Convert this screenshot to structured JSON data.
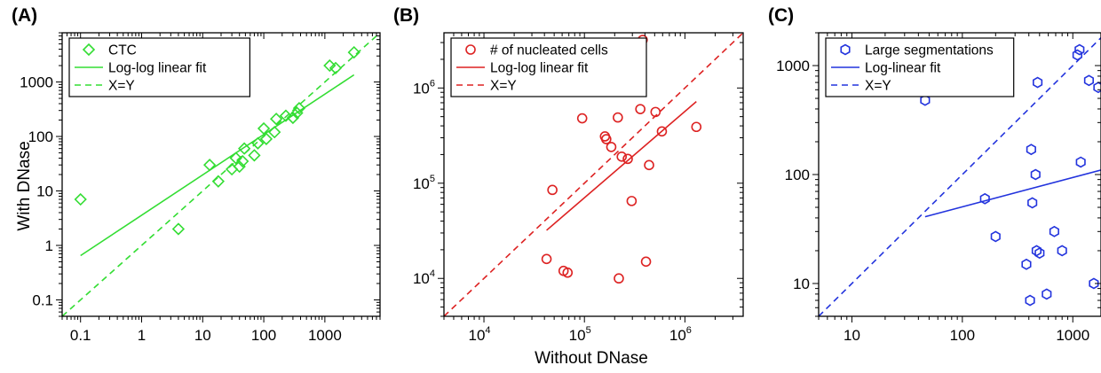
{
  "figure": {
    "ylabel_shared": "With DNase",
    "xlabel_shared": "Without DNase"
  },
  "chart_data": [
    {
      "panel_label": "(A)",
      "type": "scatter",
      "xscale": "log",
      "yscale": "log",
      "xlim": [
        0.05,
        8000
      ],
      "ylim": [
        0.05,
        8000
      ],
      "xticks": [
        0.1,
        1,
        10,
        100,
        1000
      ],
      "xticklabels": [
        "0.1",
        "1",
        "10",
        "100",
        "1000"
      ],
      "yticks": [
        0.1,
        1,
        10,
        100,
        1000
      ],
      "yticklabels": [
        "0.1",
        "1",
        "10",
        "100",
        "1000"
      ],
      "ticklabel_style": "plain",
      "color": "#33dd33",
      "marker": "diamond",
      "legend_position": "top-left",
      "series": [
        {
          "name": "CTC",
          "kind": "points",
          "points": [
            [
              0.1,
              7
            ],
            [
              4,
              2
            ],
            [
              13,
              30
            ],
            [
              18,
              15
            ],
            [
              30,
              25
            ],
            [
              35,
              40
            ],
            [
              40,
              28
            ],
            [
              45,
              35
            ],
            [
              48,
              60
            ],
            [
              70,
              45
            ],
            [
              80,
              75
            ],
            [
              100,
              140
            ],
            [
              110,
              90
            ],
            [
              150,
              120
            ],
            [
              160,
              210
            ],
            [
              230,
              240
            ],
            [
              300,
              220
            ],
            [
              350,
              270
            ],
            [
              380,
              330
            ],
            [
              1200,
              2000
            ],
            [
              1500,
              1800
            ],
            [
              3000,
              3500
            ]
          ]
        },
        {
          "name": "Log-log linear fit",
          "kind": "line",
          "dash": false,
          "points": [
            [
              0.1,
              0.65
            ],
            [
              3000,
              1350
            ]
          ]
        },
        {
          "name": "X=Y",
          "kind": "line",
          "dash": true,
          "points": [
            [
              0.05,
              0.05
            ],
            [
              8000,
              8000
            ]
          ]
        }
      ]
    },
    {
      "panel_label": "(B)",
      "type": "scatter",
      "xscale": "log",
      "yscale": "log",
      "xlim": [
        4000,
        3800000
      ],
      "ylim": [
        4000,
        3800000
      ],
      "xticks": [
        10000,
        100000,
        1000000
      ],
      "xticklabels": [
        "10^4",
        "10^5",
        "10^6"
      ],
      "yticks": [
        10000,
        100000,
        1000000
      ],
      "yticklabels": [
        "10^4",
        "10^5",
        "10^6"
      ],
      "ticklabel_style": "power",
      "color": "#dd2222",
      "marker": "circle",
      "legend_position": "top-left",
      "series": [
        {
          "name": "# of nucleated cells",
          "kind": "points",
          "points": [
            [
              42000,
              16000
            ],
            [
              48000,
              85000
            ],
            [
              62000,
              12000
            ],
            [
              68000,
              11500
            ],
            [
              95000,
              480000
            ],
            [
              160000,
              310000
            ],
            [
              165000,
              290000
            ],
            [
              185000,
              240000
            ],
            [
              215000,
              490000
            ],
            [
              220000,
              10000
            ],
            [
              235000,
              190000
            ],
            [
              270000,
              180000
            ],
            [
              295000,
              65000
            ],
            [
              360000,
              600000
            ],
            [
              380000,
              3200000
            ],
            [
              410000,
              15000
            ],
            [
              440000,
              155000
            ],
            [
              510000,
              560000
            ],
            [
              590000,
              350000
            ],
            [
              1300000,
              390000
            ]
          ]
        },
        {
          "name": "Log-log linear fit",
          "kind": "line",
          "dash": false,
          "points": [
            [
              42000,
              32000
            ],
            [
              1300000,
              720000
            ]
          ]
        },
        {
          "name": "X=Y",
          "kind": "line",
          "dash": true,
          "points": [
            [
              4000,
              4000
            ],
            [
              3800000,
              3800000
            ]
          ]
        }
      ]
    },
    {
      "panel_label": "(C)",
      "type": "scatter",
      "xscale": "log",
      "yscale": "log",
      "xlim": [
        5,
        1800
      ],
      "ylim": [
        5,
        2000
      ],
      "xticks": [
        10,
        100,
        1000
      ],
      "xticklabels": [
        "10",
        "100",
        "1000"
      ],
      "yticks": [
        10,
        100,
        1000
      ],
      "yticklabels": [
        "10",
        "100",
        "1000"
      ],
      "ticklabel_style": "plain",
      "color": "#2233dd",
      "marker": "hexagon",
      "legend_position": "top-left",
      "series": [
        {
          "name": "Large segmentations",
          "kind": "points",
          "points": [
            [
              46,
              480
            ],
            [
              160,
              60
            ],
            [
              200,
              27
            ],
            [
              380,
              15
            ],
            [
              410,
              7
            ],
            [
              420,
              170
            ],
            [
              430,
              55
            ],
            [
              460,
              100
            ],
            [
              470,
              20
            ],
            [
              480,
              700
            ],
            [
              500,
              19
            ],
            [
              580,
              8
            ],
            [
              680,
              30
            ],
            [
              800,
              20
            ],
            [
              1100,
              1250
            ],
            [
              1150,
              1400
            ],
            [
              1180,
              130
            ],
            [
              1400,
              730
            ],
            [
              1550,
              10
            ],
            [
              1700,
              630
            ]
          ]
        },
        {
          "name": "Log-linear fit",
          "kind": "line",
          "dash": false,
          "points": [
            [
              46,
              41
            ],
            [
              1800,
              110
            ]
          ]
        },
        {
          "name": "X=Y",
          "kind": "line",
          "dash": true,
          "points": [
            [
              5,
              5
            ],
            [
              2000,
              2000
            ]
          ]
        }
      ]
    }
  ]
}
